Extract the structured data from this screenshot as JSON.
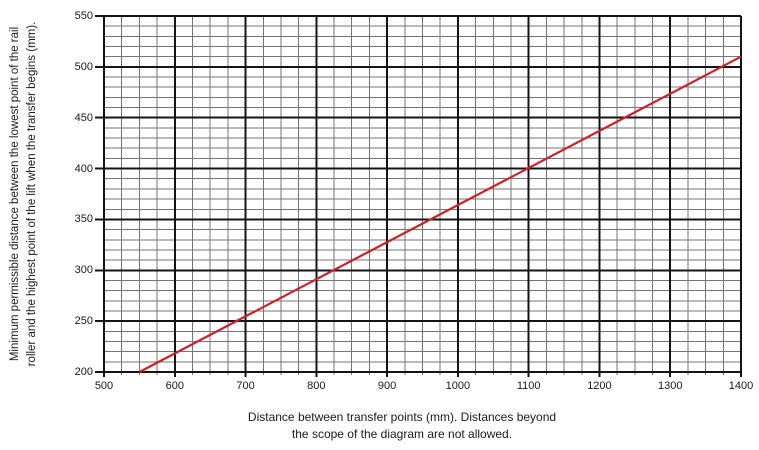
{
  "chart_data": {
    "type": "line",
    "title": "",
    "xlabel_lines": [
      "Distance between transfer points (mm). Distances beyond",
      "the scope of the diagram are not allowed."
    ],
    "ylabel_lines": [
      "Minimum permissible distance between the lowest point of the rail",
      "roller and the highest point of the lift when the transfer begins (mm)."
    ],
    "xlim": [
      500,
      1400
    ],
    "ylim": [
      200,
      550
    ],
    "x_major_step": 100,
    "x_minor_step": 25,
    "y_major_step": 50,
    "y_minor_step": 10,
    "x_ticks": [
      "500",
      "600",
      "700",
      "800",
      "900",
      "1000",
      "1100",
      "1200",
      "1300",
      "1400"
    ],
    "y_ticks": [
      "200",
      "250",
      "300",
      "350",
      "400",
      "450",
      "500",
      "550"
    ],
    "grid": "major-and-minor",
    "legend": "none",
    "series": [
      {
        "name": "minimum-permissible-distance-line",
        "color": "#cc2128",
        "points": [
          [
            550,
            200
          ],
          [
            1400,
            510
          ]
        ]
      }
    ]
  },
  "colors": {
    "background": "#ffffff",
    "major_grid": "#141414",
    "minor_grid": "#757575",
    "axis_text": "#1a1a1a",
    "series_red": "#cc2128"
  }
}
